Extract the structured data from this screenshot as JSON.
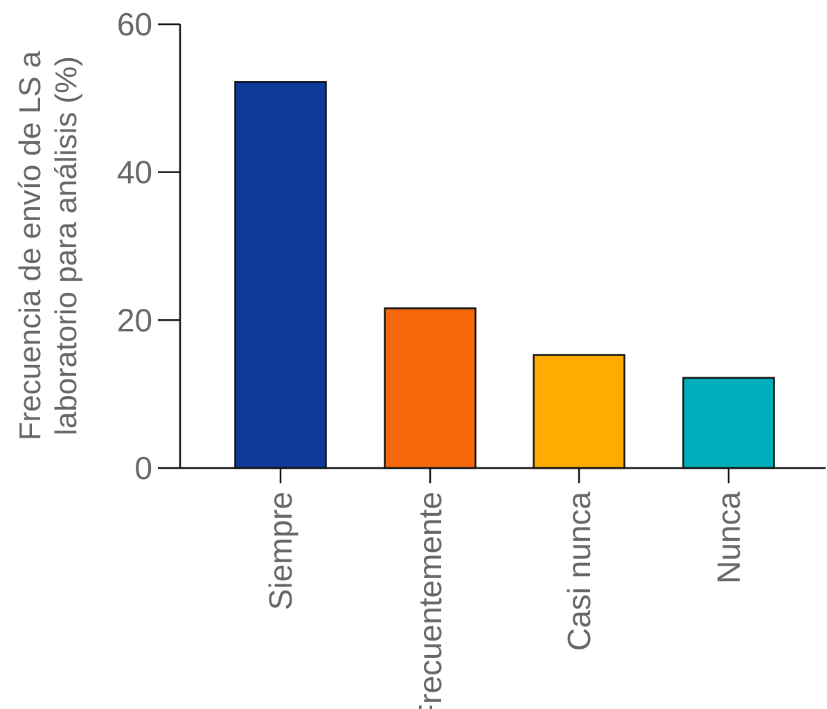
{
  "chart_data": {
    "type": "bar",
    "categories": [
      "Siempre",
      "Frecuentemente",
      "Casi nunca",
      "Nunca"
    ],
    "values": [
      52.2,
      21.6,
      15.3,
      12.2
    ],
    "colors": [
      "#0e3a9a",
      "#f5690c",
      "#ffab00",
      "#00adbd"
    ],
    "title": "",
    "xlabel": "",
    "ylabel_lines": [
      "Frecuencia de envío de LS a",
      "laboratorio para análisis (%)"
    ],
    "ylim": [
      0,
      60
    ],
    "yticks": [
      0,
      20,
      40,
      60
    ],
    "grid": false,
    "legend": "none"
  }
}
